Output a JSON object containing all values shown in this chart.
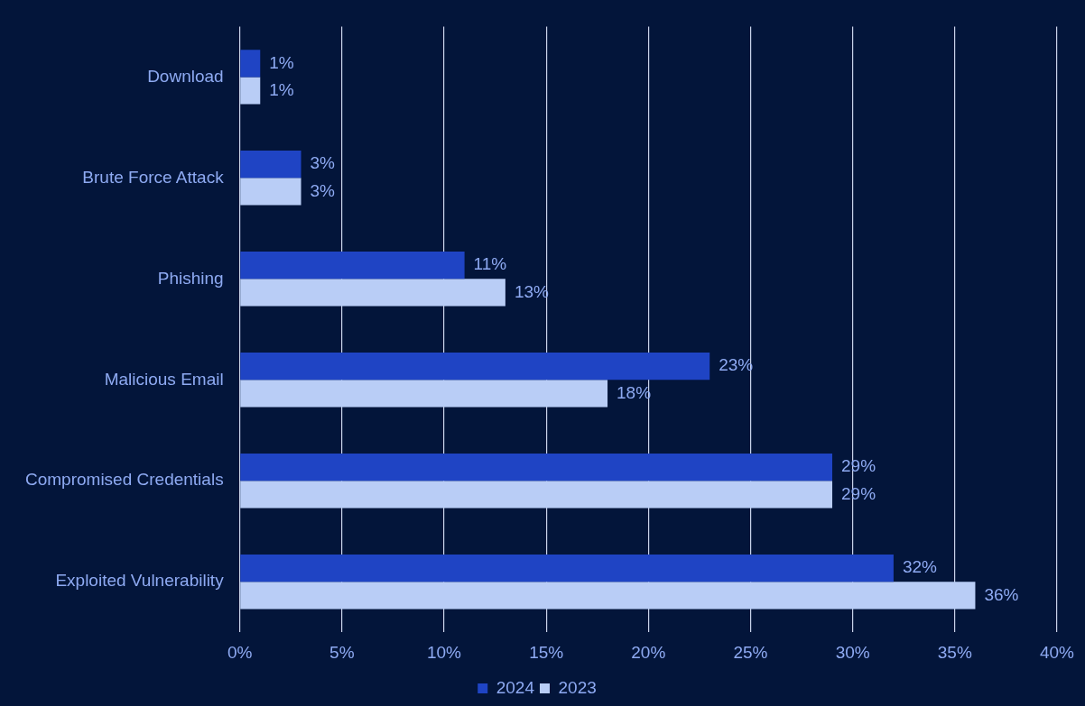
{
  "chart_data": {
    "type": "bar",
    "orientation": "horizontal",
    "categories": [
      "Download",
      "Brute Force Attack",
      "Phishing",
      "Malicious Email",
      "Compromised Credentials",
      "Exploited Vulnerability"
    ],
    "series": [
      {
        "name": "2024",
        "color": "#1f44c4",
        "values": [
          1,
          3,
          11,
          23,
          29,
          32
        ],
        "value_labels": [
          "1%",
          "3%",
          "11%",
          "23%",
          "29%",
          "32%"
        ]
      },
      {
        "name": "2023",
        "color": "#b9cdf6",
        "values": [
          1,
          3,
          13,
          18,
          29,
          36
        ],
        "value_labels": [
          "1%",
          "3%",
          "13%",
          "18%",
          "29%",
          "36%"
        ]
      }
    ],
    "xlim": [
      0,
      40
    ],
    "xticks": [
      {
        "value": 0,
        "label": "0%"
      },
      {
        "value": 5,
        "label": "5%"
      },
      {
        "value": 10,
        "label": "10%"
      },
      {
        "value": 15,
        "label": "15%"
      },
      {
        "value": 20,
        "label": "20%"
      },
      {
        "value": 25,
        "label": "25%"
      },
      {
        "value": 30,
        "label": "30%"
      },
      {
        "value": 35,
        "label": "35%"
      },
      {
        "value": 40,
        "label": "40%"
      }
    ],
    "grid": "x",
    "legend": "bottom"
  }
}
